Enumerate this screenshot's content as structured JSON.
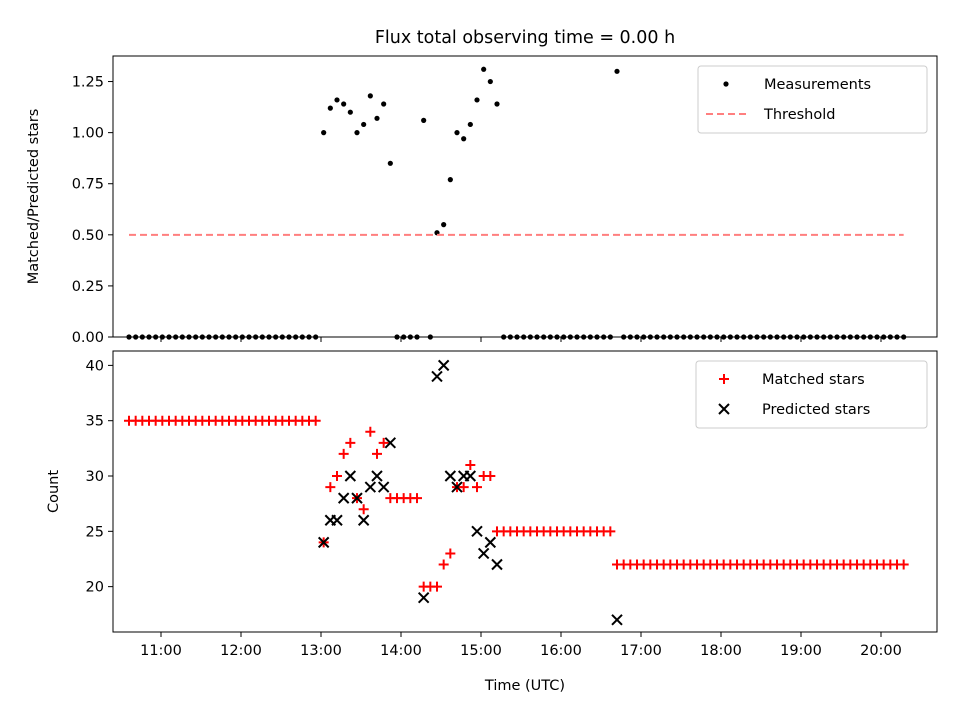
{
  "title": "Flux total observing time = 0.00 h",
  "xlabel": "Time (UTC)",
  "colors": {
    "threshold": "#ff7f7f",
    "matched": "#ff0000",
    "predicted": "#000000",
    "measurement": "#000000"
  },
  "chart_data": [
    {
      "type": "scatter",
      "panel": "top",
      "title": "Flux total observing time = 0.00 h",
      "ylabel": "Matched/Predicted stars",
      "xlim": [
        "10:24",
        "20:42"
      ],
      "ylim": [
        0,
        1.375
      ],
      "x_ticks": [
        "11:00",
        "12:00",
        "13:00",
        "14:00",
        "15:00",
        "16:00",
        "17:00",
        "18:00",
        "19:00",
        "20:00"
      ],
      "y_ticks": [
        "0.00",
        "0.25",
        "0.50",
        "0.75",
        "1.00",
        "1.25"
      ],
      "legend": "top-right",
      "series": [
        {
          "name": "Measurements",
          "marker": "dot",
          "points": [
            [
              "10:36",
              0
            ],
            [
              "10:41",
              0
            ],
            [
              "10:46",
              0
            ],
            [
              "10:51",
              0
            ],
            [
              "10:56",
              0
            ],
            [
              "11:01",
              0
            ],
            [
              "11:06",
              0
            ],
            [
              "11:11",
              0
            ],
            [
              "11:16",
              0
            ],
            [
              "11:21",
              0
            ],
            [
              "11:26",
              0
            ],
            [
              "11:31",
              0
            ],
            [
              "11:36",
              0
            ],
            [
              "11:41",
              0
            ],
            [
              "11:46",
              0
            ],
            [
              "11:51",
              0
            ],
            [
              "11:56",
              0
            ],
            [
              "12:01",
              0
            ],
            [
              "12:06",
              0
            ],
            [
              "12:11",
              0
            ],
            [
              "12:16",
              0
            ],
            [
              "12:21",
              0
            ],
            [
              "12:26",
              0
            ],
            [
              "12:31",
              0
            ],
            [
              "12:36",
              0
            ],
            [
              "12:41",
              0
            ],
            [
              "12:46",
              0
            ],
            [
              "12:51",
              0
            ],
            [
              "12:56",
              0
            ],
            [
              "13:02",
              1.0
            ],
            [
              "13:07",
              1.12
            ],
            [
              "13:12",
              1.16
            ],
            [
              "13:17",
              1.14
            ],
            [
              "13:22",
              1.1
            ],
            [
              "13:27",
              1.0
            ],
            [
              "13:32",
              1.04
            ],
            [
              "13:37",
              1.18
            ],
            [
              "13:42",
              1.07
            ],
            [
              "13:47",
              1.14
            ],
            [
              "13:52",
              0.85
            ],
            [
              "13:57",
              0
            ],
            [
              "14:02",
              0
            ],
            [
              "14:07",
              0
            ],
            [
              "14:12",
              0
            ],
            [
              "14:22",
              0
            ],
            [
              "14:17",
              1.06
            ],
            [
              "14:27",
              0.51
            ],
            [
              "14:32",
              0.55
            ],
            [
              "14:37",
              0.77
            ],
            [
              "14:42",
              1.0
            ],
            [
              "14:47",
              0.97
            ],
            [
              "14:52",
              1.04
            ],
            [
              "14:57",
              1.16
            ],
            [
              "15:02",
              1.31
            ],
            [
              "15:07",
              1.25
            ],
            [
              "15:12",
              1.14
            ],
            [
              "15:17",
              0
            ],
            [
              "15:22",
              0
            ],
            [
              "15:27",
              0
            ],
            [
              "15:32",
              0
            ],
            [
              "15:37",
              0
            ],
            [
              "15:42",
              0
            ],
            [
              "15:47",
              0
            ],
            [
              "15:52",
              0
            ],
            [
              "15:57",
              0
            ],
            [
              "16:02",
              0
            ],
            [
              "16:07",
              0
            ],
            [
              "16:12",
              0
            ],
            [
              "16:17",
              0
            ],
            [
              "16:22",
              0
            ],
            [
              "16:27",
              0
            ],
            [
              "16:32",
              0
            ],
            [
              "16:37",
              0
            ],
            [
              "16:42",
              1.3
            ],
            [
              "16:47",
              0
            ],
            [
              "16:52",
              0
            ],
            [
              "16:57",
              0
            ],
            [
              "17:02",
              0
            ],
            [
              "17:07",
              0
            ],
            [
              "17:12",
              0
            ],
            [
              "17:17",
              0
            ],
            [
              "17:22",
              0
            ],
            [
              "17:27",
              0
            ],
            [
              "17:32",
              0
            ],
            [
              "17:37",
              0
            ],
            [
              "17:42",
              0
            ],
            [
              "17:47",
              0
            ],
            [
              "17:52",
              0
            ],
            [
              "17:57",
              0
            ],
            [
              "18:02",
              0
            ],
            [
              "18:07",
              0
            ],
            [
              "18:12",
              0
            ],
            [
              "18:17",
              0
            ],
            [
              "18:22",
              0
            ],
            [
              "18:27",
              0
            ],
            [
              "18:32",
              0
            ],
            [
              "18:37",
              0
            ],
            [
              "18:42",
              0
            ],
            [
              "18:47",
              0
            ],
            [
              "18:52",
              0
            ],
            [
              "18:57",
              0
            ],
            [
              "19:02",
              0
            ],
            [
              "19:07",
              0
            ],
            [
              "19:12",
              0
            ],
            [
              "19:17",
              0
            ],
            [
              "19:22",
              0
            ],
            [
              "19:27",
              0
            ],
            [
              "19:32",
              0
            ],
            [
              "19:37",
              0
            ],
            [
              "19:42",
              0
            ],
            [
              "19:47",
              0
            ],
            [
              "19:52",
              0
            ],
            [
              "19:57",
              0
            ],
            [
              "20:02",
              0
            ],
            [
              "20:07",
              0
            ],
            [
              "20:12",
              0
            ],
            [
              "20:17",
              0
            ]
          ]
        },
        {
          "name": "Threshold",
          "marker": "dashed-line",
          "points": [
            [
              "10:36",
              0.5
            ],
            [
              "20:17",
              0.5
            ]
          ]
        }
      ]
    },
    {
      "type": "scatter",
      "panel": "bottom",
      "ylabel": "Count",
      "xlabel": "Time (UTC)",
      "xlim": [
        "10:24",
        "20:42"
      ],
      "ylim": [
        15.9,
        41.3
      ],
      "x_ticks": [
        "11:00",
        "12:00",
        "13:00",
        "14:00",
        "15:00",
        "16:00",
        "17:00",
        "18:00",
        "19:00",
        "20:00"
      ],
      "y_ticks": [
        "20",
        "25",
        "30",
        "35",
        "40"
      ],
      "legend": "top-right",
      "series": [
        {
          "name": "Matched stars",
          "marker": "plus",
          "points": [
            [
              "10:36",
              35
            ],
            [
              "10:41",
              35
            ],
            [
              "10:46",
              35
            ],
            [
              "10:51",
              35
            ],
            [
              "10:56",
              35
            ],
            [
              "11:01",
              35
            ],
            [
              "11:06",
              35
            ],
            [
              "11:11",
              35
            ],
            [
              "11:16",
              35
            ],
            [
              "11:21",
              35
            ],
            [
              "11:26",
              35
            ],
            [
              "11:31",
              35
            ],
            [
              "11:36",
              35
            ],
            [
              "11:41",
              35
            ],
            [
              "11:46",
              35
            ],
            [
              "11:51",
              35
            ],
            [
              "11:56",
              35
            ],
            [
              "12:01",
              35
            ],
            [
              "12:06",
              35
            ],
            [
              "12:11",
              35
            ],
            [
              "12:16",
              35
            ],
            [
              "12:21",
              35
            ],
            [
              "12:26",
              35
            ],
            [
              "12:31",
              35
            ],
            [
              "12:36",
              35
            ],
            [
              "12:41",
              35
            ],
            [
              "12:46",
              35
            ],
            [
              "12:51",
              35
            ],
            [
              "12:56",
              35
            ],
            [
              "13:02",
              24
            ],
            [
              "13:07",
              29
            ],
            [
              "13:12",
              30
            ],
            [
              "13:17",
              32
            ],
            [
              "13:22",
              33
            ],
            [
              "13:27",
              28
            ],
            [
              "13:32",
              27
            ],
            [
              "13:37",
              34
            ],
            [
              "13:42",
              32
            ],
            [
              "13:47",
              33
            ],
            [
              "13:52",
              28
            ],
            [
              "13:57",
              28
            ],
            [
              "14:02",
              28
            ],
            [
              "14:07",
              28
            ],
            [
              "14:12",
              28
            ],
            [
              "14:17",
              20
            ],
            [
              "14:22",
              20
            ],
            [
              "14:27",
              20
            ],
            [
              "14:32",
              22
            ],
            [
              "14:37",
              23
            ],
            [
              "14:42",
              29
            ],
            [
              "14:47",
              29
            ],
            [
              "14:52",
              31
            ],
            [
              "14:57",
              29
            ],
            [
              "15:02",
              30
            ],
            [
              "15:07",
              30
            ],
            [
              "15:12",
              25
            ],
            [
              "15:17",
              25
            ],
            [
              "15:22",
              25
            ],
            [
              "15:27",
              25
            ],
            [
              "15:32",
              25
            ],
            [
              "15:37",
              25
            ],
            [
              "15:42",
              25
            ],
            [
              "15:47",
              25
            ],
            [
              "15:52",
              25
            ],
            [
              "15:57",
              25
            ],
            [
              "16:02",
              25
            ],
            [
              "16:07",
              25
            ],
            [
              "16:12",
              25
            ],
            [
              "16:17",
              25
            ],
            [
              "16:22",
              25
            ],
            [
              "16:27",
              25
            ],
            [
              "16:32",
              25
            ],
            [
              "16:37",
              25
            ],
            [
              "16:42",
              22
            ],
            [
              "16:47",
              22
            ],
            [
              "16:52",
              22
            ],
            [
              "16:57",
              22
            ],
            [
              "17:02",
              22
            ],
            [
              "17:07",
              22
            ],
            [
              "17:12",
              22
            ],
            [
              "17:17",
              22
            ],
            [
              "17:22",
              22
            ],
            [
              "17:27",
              22
            ],
            [
              "17:32",
              22
            ],
            [
              "17:37",
              22
            ],
            [
              "17:42",
              22
            ],
            [
              "17:47",
              22
            ],
            [
              "17:52",
              22
            ],
            [
              "17:57",
              22
            ],
            [
              "18:02",
              22
            ],
            [
              "18:07",
              22
            ],
            [
              "18:12",
              22
            ],
            [
              "18:17",
              22
            ],
            [
              "18:22",
              22
            ],
            [
              "18:27",
              22
            ],
            [
              "18:32",
              22
            ],
            [
              "18:37",
              22
            ],
            [
              "18:42",
              22
            ],
            [
              "18:47",
              22
            ],
            [
              "18:52",
              22
            ],
            [
              "18:57",
              22
            ],
            [
              "19:02",
              22
            ],
            [
              "19:07",
              22
            ],
            [
              "19:12",
              22
            ],
            [
              "19:17",
              22
            ],
            [
              "19:22",
              22
            ],
            [
              "19:27",
              22
            ],
            [
              "19:32",
              22
            ],
            [
              "19:37",
              22
            ],
            [
              "19:42",
              22
            ],
            [
              "19:47",
              22
            ],
            [
              "19:52",
              22
            ],
            [
              "19:57",
              22
            ],
            [
              "20:02",
              22
            ],
            [
              "20:07",
              22
            ],
            [
              "20:12",
              22
            ],
            [
              "20:17",
              22
            ]
          ]
        },
        {
          "name": "Predicted stars",
          "marker": "x",
          "points": [
            [
              "13:02",
              24
            ],
            [
              "13:07",
              26
            ],
            [
              "13:12",
              26
            ],
            [
              "13:17",
              28
            ],
            [
              "13:22",
              30
            ],
            [
              "13:27",
              28
            ],
            [
              "13:32",
              26
            ],
            [
              "13:37",
              29
            ],
            [
              "13:42",
              30
            ],
            [
              "13:47",
              29
            ],
            [
              "13:52",
              33
            ],
            [
              "14:17",
              19
            ],
            [
              "14:27",
              39
            ],
            [
              "14:32",
              40
            ],
            [
              "14:37",
              30
            ],
            [
              "14:42",
              29
            ],
            [
              "14:47",
              30
            ],
            [
              "14:52",
              30
            ],
            [
              "14:57",
              25
            ],
            [
              "15:02",
              23
            ],
            [
              "15:07",
              24
            ],
            [
              "15:12",
              22
            ],
            [
              "16:42",
              17
            ]
          ]
        }
      ]
    }
  ]
}
